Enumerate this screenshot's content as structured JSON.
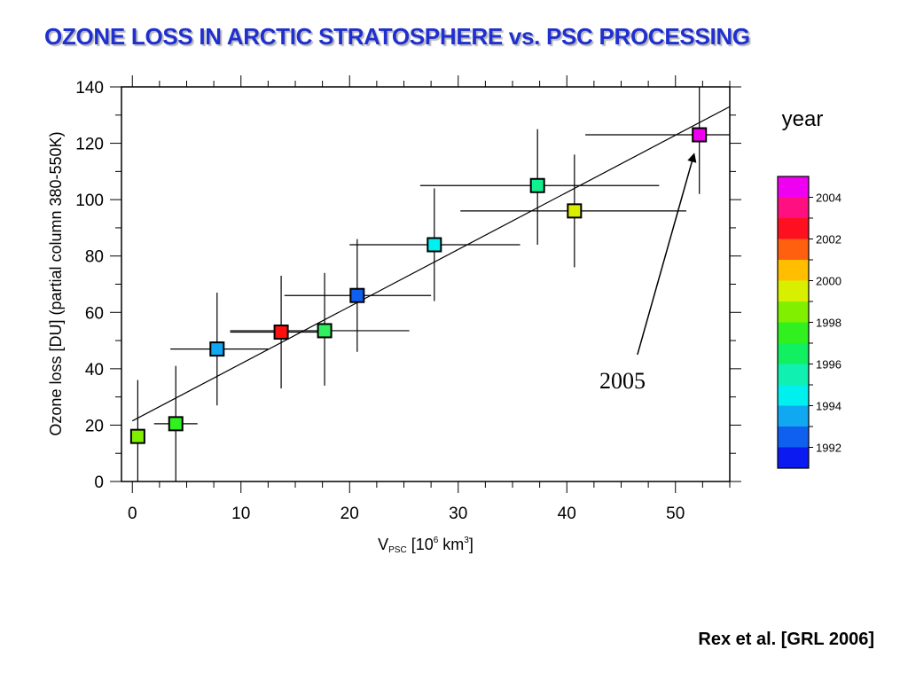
{
  "page": {
    "title": "OZONE LOSS IN ARCTIC STRATOSPHERE vs. PSC PROCESSING",
    "citation": "Rex et al. [GRL 2006]"
  },
  "chart_data": {
    "type": "scatter",
    "title": "OZONE LOSS IN ARCTIC STRATOSPHERE vs. PSC PROCESSING",
    "xlabel_main": "V",
    "xlabel_sub": "PSC",
    "xlabel_rest": " [10",
    "xlabel_exp": "6",
    "xlabel_unit": " km",
    "xlabel_unit_exp": "3",
    "xlabel_close": "]",
    "ylabel": "Ozone loss [DU] (partial column 380-550K)",
    "xlim": [
      -1,
      55
    ],
    "ylim": [
      0,
      140
    ],
    "xticks": [
      0,
      10,
      20,
      30,
      40,
      50
    ],
    "yticks": [
      0,
      20,
      40,
      60,
      80,
      100,
      120,
      140
    ],
    "points": [
      {
        "x": 0.5,
        "y": 16,
        "xerr": [
          0,
          0
        ],
        "yerr": [
          0,
          36
        ],
        "color": "#80f000"
      },
      {
        "x": 4.0,
        "y": 20.5,
        "xerr": [
          2,
          6
        ],
        "yerr": [
          0,
          41
        ],
        "color": "#30f020"
      },
      {
        "x": 7.8,
        "y": 47,
        "xerr": [
          3.5,
          12.5
        ],
        "yerr": [
          27,
          67
        ],
        "color": "#10a8f0"
      },
      {
        "x": 13.7,
        "y": 53,
        "xerr": [
          9,
          18
        ],
        "yerr": [
          33,
          73
        ],
        "color": "#ff1010"
      },
      {
        "x": 17.7,
        "y": 53.5,
        "xerr": [
          9,
          25.5
        ],
        "yerr": [
          34,
          74
        ],
        "color": "#30f060"
      },
      {
        "x": 20.7,
        "y": 66,
        "xerr": [
          14,
          27.5
        ],
        "yerr": [
          46,
          86
        ],
        "color": "#1060f0"
      },
      {
        "x": 27.8,
        "y": 84,
        "xerr": [
          20,
          35.7
        ],
        "yerr": [
          64,
          104
        ],
        "color": "#00f0f0"
      },
      {
        "x": 37.3,
        "y": 105,
        "xerr": [
          26.5,
          48.5
        ],
        "yerr": [
          84,
          125
        ],
        "color": "#10f090"
      },
      {
        "x": 40.7,
        "y": 96,
        "xerr": [
          30.2,
          51
        ],
        "yerr": [
          76,
          116
        ],
        "color": "#d8f000"
      },
      {
        "x": 52.2,
        "y": 123,
        "xerr": [
          41.7,
          55
        ],
        "yerr": [
          102,
          142
        ],
        "color": "#f000f0"
      }
    ],
    "fit_line": {
      "x": [
        0,
        55
      ],
      "y": [
        21.5,
        133
      ]
    },
    "annotation": {
      "text": "2005",
      "arrow_from": [
        46.5,
        45
      ],
      "arrow_to": [
        51.7,
        116
      ]
    },
    "legend": {
      "title": "year",
      "placement": "right",
      "labels": [
        "1992",
        "1994",
        "1996",
        "1998",
        "2000",
        "2002",
        "2004"
      ],
      "colors": [
        "#f000f0",
        "#ff1080",
        "#ff1020",
        "#ff6010",
        "#ffbf00",
        "#d8f000",
        "#80f000",
        "#30f020",
        "#10f060",
        "#10f0b0",
        "#00f0f0",
        "#10a8f0",
        "#1060f0",
        "#0a1af0"
      ]
    },
    "grid": false
  }
}
